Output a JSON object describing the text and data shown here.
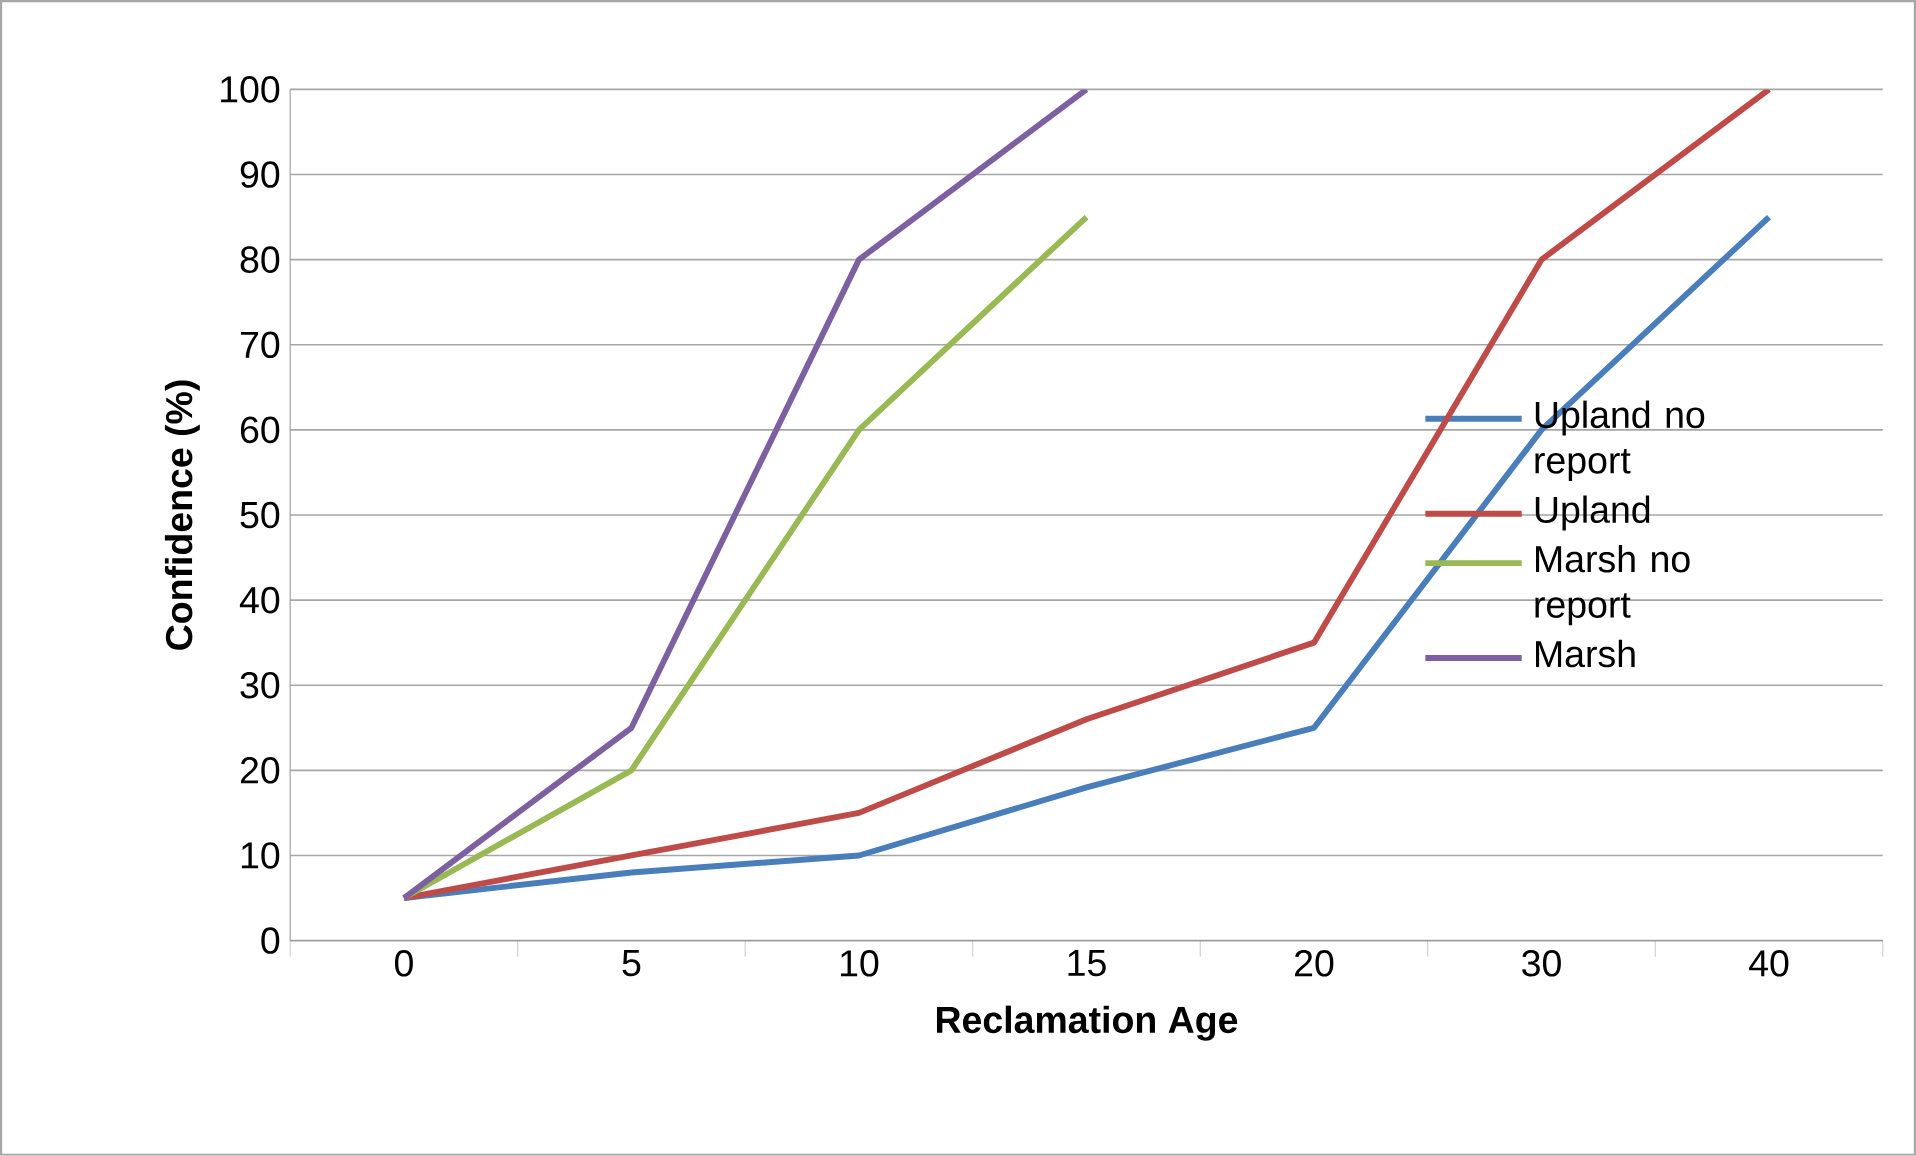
{
  "chart_data": {
    "type": "line",
    "xlabel": "Reclamation Age",
    "ylabel": "Confidence (%)",
    "categories": [
      "0",
      "5",
      "10",
      "15",
      "20",
      "30",
      "40"
    ],
    "series": [
      {
        "name": "Upland no report",
        "color": "#4a7ebb",
        "values": [
          5,
          8,
          10,
          18,
          25,
          60,
          85
        ]
      },
      {
        "name": "Upland",
        "color": "#be4b48",
        "values": [
          5,
          10,
          15,
          26,
          35,
          80,
          100
        ]
      },
      {
        "name": "Marsh no report",
        "color": "#98b954",
        "values": [
          5,
          20,
          60,
          85,
          null,
          null,
          null
        ]
      },
      {
        "name": "Marsh",
        "color": "#7d60a0",
        "values": [
          5,
          25,
          80,
          100,
          null,
          null,
          null
        ]
      }
    ],
    "ylim": [
      0,
      100
    ],
    "yticks": [
      0,
      10,
      20,
      30,
      40,
      50,
      60,
      70,
      80,
      90,
      100
    ],
    "grid": "y",
    "legend": "right",
    "marker": "none",
    "line_style": "solid"
  }
}
